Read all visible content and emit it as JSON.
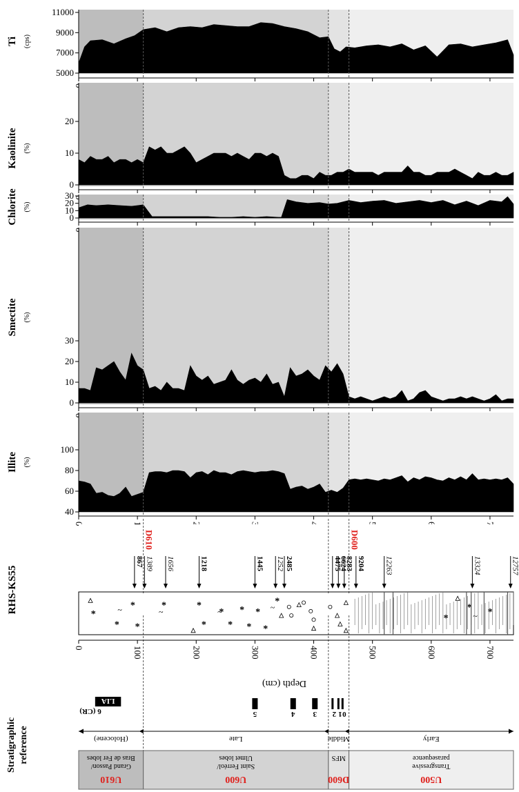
{
  "chart_data": [
    {
      "type": "area",
      "title": "",
      "ylabel": "Ti",
      "yunit": "(cps)",
      "xlabel": "Depth (cm)",
      "xlim": [
        0,
        740
      ],
      "ylim": [
        5000,
        11000
      ],
      "yticks": [
        5000,
        7000,
        9000,
        11000
      ],
      "xticks": [
        0,
        100,
        200,
        300,
        400,
        500,
        600,
        700
      ],
      "x": [
        0,
        10,
        20,
        40,
        60,
        80,
        95,
        110,
        130,
        150,
        170,
        190,
        210,
        230,
        250,
        270,
        290,
        310,
        330,
        350,
        370,
        390,
        410,
        425,
        435,
        445,
        455,
        470,
        490,
        510,
        530,
        550,
        570,
        590,
        610,
        630,
        650,
        670,
        690,
        710,
        730,
        740
      ],
      "values": [
        6000,
        7600,
        8200,
        8300,
        7900,
        8400,
        8700,
        9300,
        9500,
        9100,
        9500,
        9600,
        9500,
        9800,
        9700,
        9600,
        9600,
        10000,
        9900,
        9600,
        9400,
        9100,
        8500,
        8600,
        7400,
        7100,
        7600,
        7500,
        7700,
        7800,
        7600,
        7900,
        7300,
        7700,
        6600,
        7800,
        7900,
        7600,
        7800,
        8000,
        8300,
        6800
      ]
    },
    {
      "type": "area",
      "title": "",
      "ylabel": "Kaolinite",
      "yunit": "(%)",
      "xlim": [
        0,
        740
      ],
      "ylim": [
        0,
        28
      ],
      "yticks": [
        0,
        10,
        20
      ],
      "xticks": [
        0,
        100,
        200,
        300,
        400,
        500,
        600,
        700
      ],
      "x": [
        0,
        10,
        20,
        30,
        40,
        50,
        60,
        70,
        80,
        90,
        100,
        110,
        120,
        130,
        140,
        150,
        160,
        170,
        180,
        190,
        200,
        210,
        220,
        230,
        240,
        250,
        260,
        270,
        280,
        290,
        300,
        310,
        320,
        330,
        340,
        350,
        360,
        370,
        380,
        390,
        400,
        410,
        420,
        430,
        440,
        450,
        460,
        470,
        480,
        490,
        500,
        510,
        520,
        530,
        540,
        550,
        560,
        570,
        580,
        590,
        600,
        610,
        620,
        630,
        640,
        650,
        660,
        670,
        680,
        690,
        700,
        710,
        720,
        730,
        740
      ],
      "values": [
        8,
        7,
        9,
        8,
        8,
        9,
        7,
        8,
        8,
        7,
        8,
        7,
        12,
        11,
        12,
        10,
        10,
        11,
        12,
        10,
        7,
        8,
        9,
        10,
        10,
        10,
        9,
        10,
        9,
        8,
        10,
        10,
        9,
        10,
        9,
        3,
        2,
        2,
        3,
        3,
        2,
        4,
        3,
        3,
        4,
        4,
        5,
        4,
        4,
        4,
        4,
        3,
        4,
        4,
        4,
        4,
        6,
        4,
        4,
        3,
        3,
        4,
        4,
        4,
        5,
        4,
        3,
        2,
        4,
        3,
        3,
        4,
        3,
        3,
        4
      ]
    },
    {
      "type": "area",
      "title": "",
      "ylabel": "Chlorite",
      "yunit": "(%)",
      "xlim": [
        0,
        740
      ],
      "ylim": [
        0,
        33
      ],
      "yticks": [
        0,
        10,
        20,
        30
      ],
      "xticks": [
        0,
        100,
        200,
        300,
        400,
        500,
        600,
        700
      ],
      "x": [
        0,
        15,
        30,
        50,
        70,
        90,
        100,
        110,
        125,
        140,
        160,
        180,
        200,
        220,
        240,
        260,
        280,
        300,
        320,
        340,
        345,
        355,
        370,
        390,
        410,
        425,
        440,
        460,
        480,
        500,
        520,
        540,
        560,
        580,
        600,
        620,
        640,
        660,
        680,
        700,
        720,
        730,
        740
      ],
      "values": [
        14,
        18,
        17,
        18,
        17,
        16,
        17,
        18,
        2,
        2,
        2,
        2,
        2,
        2,
        1,
        1,
        2,
        1,
        2,
        1,
        1,
        25,
        22,
        20,
        21,
        19,
        20,
        24,
        21,
        23,
        24,
        20,
        22,
        24,
        21,
        24,
        18,
        23,
        17,
        24,
        22,
        29,
        19
      ]
    },
    {
      "type": "area",
      "title": "",
      "ylabel": "Smectite",
      "yunit": "(%)",
      "xlim": [
        0,
        740
      ],
      "ylim": [
        0,
        35
      ],
      "yticks": [
        0,
        10,
        20,
        30
      ],
      "xticks": [
        0,
        100,
        200,
        300,
        400,
        500,
        600,
        700
      ],
      "x": [
        0,
        10,
        20,
        30,
        40,
        50,
        60,
        70,
        80,
        90,
        100,
        110,
        120,
        130,
        140,
        150,
        160,
        170,
        180,
        190,
        200,
        210,
        220,
        230,
        240,
        250,
        260,
        270,
        280,
        290,
        300,
        310,
        320,
        330,
        340,
        350,
        360,
        370,
        380,
        390,
        400,
        410,
        420,
        430,
        440,
        450,
        460,
        470,
        480,
        490,
        500,
        510,
        520,
        530,
        540,
        550,
        560,
        570,
        580,
        590,
        600,
        610,
        620,
        630,
        640,
        650,
        660,
        670,
        680,
        690,
        700,
        710,
        720,
        730,
        740
      ],
      "values": [
        7,
        7,
        6,
        17,
        16,
        18,
        20,
        15,
        11,
        24,
        18,
        16,
        7,
        8,
        6,
        10,
        7,
        7,
        6,
        18,
        13,
        11,
        13,
        9,
        10,
        11,
        16,
        11,
        9,
        11,
        12,
        10,
        14,
        9,
        10,
        3,
        17,
        13,
        14,
        16,
        13,
        11,
        18,
        15,
        19,
        14,
        3,
        2,
        3,
        2,
        1,
        2,
        3,
        2,
        3,
        6,
        1,
        2,
        5,
        6,
        3,
        2,
        1,
        2,
        2,
        3,
        2,
        3,
        2,
        1,
        2,
        4,
        1,
        2,
        2
      ]
    },
    {
      "type": "area",
      "title": "",
      "ylabel": "Illite",
      "yunit": "(%)",
      "xlim": [
        0,
        740
      ],
      "ylim": [
        40,
        110
      ],
      "yticks": [
        40,
        60,
        80,
        100
      ],
      "xticks": [
        0,
        100,
        200,
        300,
        400,
        500,
        600,
        700
      ],
      "x": [
        0,
        10,
        20,
        30,
        40,
        50,
        60,
        70,
        80,
        90,
        100,
        110,
        120,
        130,
        140,
        150,
        160,
        170,
        180,
        190,
        200,
        210,
        220,
        230,
        240,
        250,
        260,
        270,
        280,
        290,
        300,
        310,
        320,
        330,
        340,
        350,
        360,
        370,
        380,
        390,
        400,
        410,
        420,
        430,
        440,
        450,
        460,
        470,
        480,
        490,
        500,
        510,
        520,
        530,
        540,
        550,
        560,
        570,
        580,
        590,
        600,
        610,
        620,
        630,
        640,
        650,
        660,
        670,
        680,
        690,
        700,
        710,
        720,
        730,
        740
      ],
      "values": [
        70,
        69,
        67,
        58,
        59,
        56,
        55,
        58,
        64,
        55,
        57,
        59,
        78,
        79,
        79,
        78,
        80,
        80,
        79,
        73,
        78,
        79,
        76,
        80,
        78,
        78,
        76,
        79,
        80,
        79,
        78,
        79,
        79,
        80,
        79,
        77,
        62,
        64,
        65,
        62,
        64,
        67,
        59,
        61,
        59,
        63,
        71,
        72,
        71,
        72,
        71,
        70,
        72,
        71,
        73,
        75,
        69,
        73,
        71,
        74,
        73,
        71,
        70,
        73,
        71,
        74,
        71,
        77,
        71,
        72,
        71,
        72,
        71,
        73,
        67
      ]
    }
  ],
  "depth_axis": {
    "label": "Depth (cm)",
    "ticks": [
      "0",
      "100",
      "200",
      "300",
      "400",
      "500",
      "600",
      "700"
    ]
  },
  "units": {
    "label": "RHS-KS55",
    "boundaries": [
      {
        "name": "D610",
        "depth": 110
      },
      {
        "name": "D600",
        "depth": 460
      }
    ],
    "shading": [
      {
        "from": 0,
        "to": 110,
        "color": "#bdbdbd"
      },
      {
        "from": 110,
        "to": 425,
        "color": "#d3d3d3"
      },
      {
        "from": 425,
        "to": 460,
        "color": "#e3e3e3"
      },
      {
        "from": 460,
        "to": 740,
        "color": "#efefef"
      }
    ],
    "sublines": [
      425
    ]
  },
  "core_dates": [
    {
      "depth": 95,
      "label": "867",
      "style": "bold"
    },
    {
      "depth": 112,
      "label": "1389",
      "style": "italic"
    },
    {
      "depth": 148,
      "label": "1656",
      "style": "italic"
    },
    {
      "depth": 205,
      "label": "1218",
      "style": "bold"
    },
    {
      "depth": 300,
      "label": "1445",
      "style": "bold"
    },
    {
      "depth": 335,
      "label": "1252",
      "style": "italic"
    },
    {
      "depth": 350,
      "label": "2485",
      "style": "bold"
    },
    {
      "depth": 432,
      "label": "4475",
      "style": "bold"
    },
    {
      "depth": 442,
      "label": "6624",
      "style": "bold"
    },
    {
      "depth": 452,
      "label": "8283",
      "style": "bold"
    },
    {
      "depth": 472,
      "label": "9204",
      "style": "bold"
    },
    {
      "depth": 520,
      "label": "12263",
      "style": "italic"
    },
    {
      "depth": 670,
      "label": "13324",
      "style": "italic"
    },
    {
      "depth": 735,
      "label": "12757",
      "style": "italic"
    }
  ],
  "strat": {
    "label_line1": "Stratigraphic",
    "label_line2": "reference",
    "events": {
      "lia_label": "LIA",
      "cr_label": "6 (CR)",
      "numbers": [
        "5",
        "4",
        "3",
        "2",
        "1",
        "0"
      ]
    },
    "periods": [
      {
        "label": "(Holocene)",
        "from": 0,
        "to": 110
      },
      {
        "label": "Late",
        "from": 110,
        "to": 425
      },
      {
        "label": "Middle",
        "from": 425,
        "to": 460
      },
      {
        "label": "Early",
        "from": 460,
        "to": 740
      }
    ],
    "boxes": [
      {
        "line1": "Bras de Fer lobes",
        "line2": "Grand Passon/",
        "unit": "U610",
        "from": 0,
        "to": 110
      },
      {
        "line1": "Ulmet lobes",
        "line2": "Saint Ferréol/",
        "unit": "U600",
        "from": 110,
        "to": 425
      },
      {
        "line1": "MFS",
        "line2": "",
        "unit": "D600",
        "from": 425,
        "to": 460
      },
      {
        "line1": "parasequence",
        "line2": "Transgressive",
        "unit": "U500",
        "from": 460,
        "to": 740
      }
    ],
    "unit_color": "#e0201c",
    "bar_color": "#000000"
  }
}
